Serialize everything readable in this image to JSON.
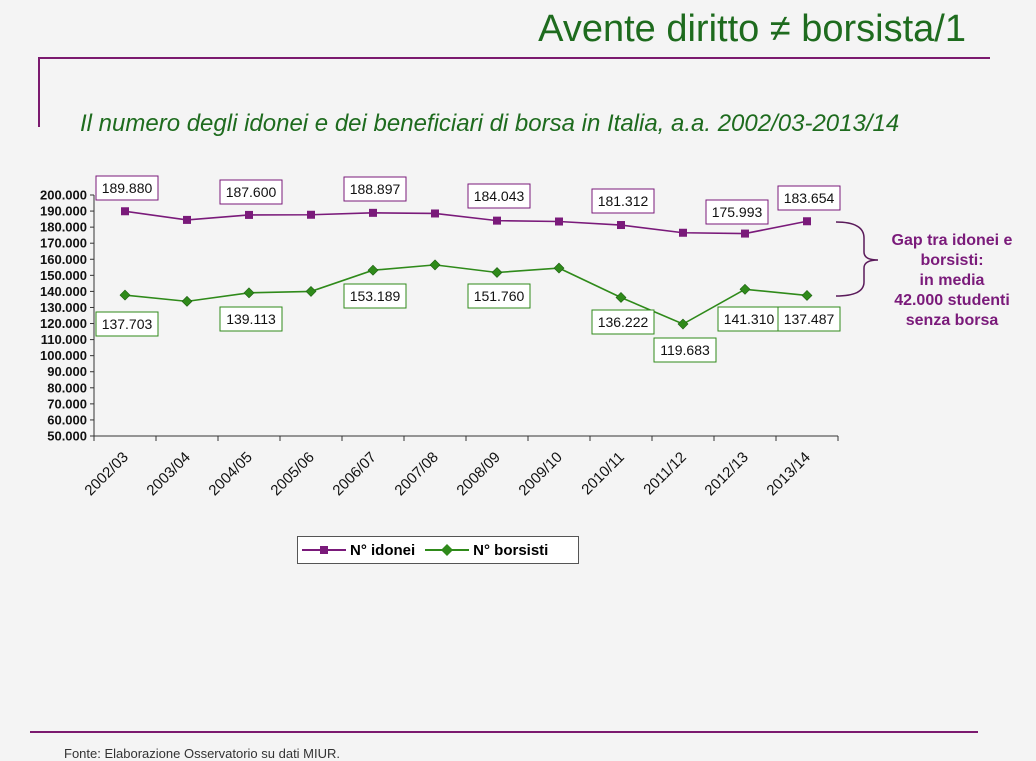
{
  "header": {
    "title": "Avente diritto ≠ borsista/1",
    "subtitle": "Il numero degli idonei e dei beneficiari di borsa in Italia, a.a. 2002/03-2013/14"
  },
  "annotation": {
    "line1": "Gap tra idonei e",
    "line2": "borsisti:",
    "line3": "in media",
    "line4": "42.000 studenti",
    "line5": "senza borsa"
  },
  "footer": {
    "source": "Fonte: Elaborazione Osservatorio su dati MIUR."
  },
  "colors": {
    "idonei": "#7a1a7a",
    "borsisti": "#2f8a1a",
    "frame": "#7b1a6f",
    "title": "#1e6b1e"
  },
  "chart_data": {
    "type": "line",
    "categories": [
      "2002/03",
      "2003/04",
      "2004/05",
      "2005/06",
      "2006/07",
      "2007/08",
      "2008/09",
      "2009/10",
      "2010/11",
      "2011/12",
      "2012/13",
      "2013/14"
    ],
    "ylim": [
      50000,
      200000
    ],
    "yticks": [
      "50.000",
      "60.000",
      "70.000",
      "80.000",
      "90.000",
      "100.000",
      "110.000",
      "120.000",
      "130.000",
      "140.000",
      "150.000",
      "160.000",
      "170.000",
      "180.000",
      "190.000",
      "200.000"
    ],
    "legend_position": "bottom",
    "series": [
      {
        "name": "N° idonei",
        "marker": "square",
        "values": [
          189880,
          184500,
          187600,
          187700,
          188897,
          188500,
          184043,
          183500,
          181312,
          176500,
          175993,
          183654
        ],
        "labels": [
          "189.880",
          "",
          "187.600",
          "",
          "188.897",
          "",
          "184.043",
          "",
          "181.312",
          "",
          "175.993",
          "183.654"
        ]
      },
      {
        "name": "N° borsisti",
        "marker": "diamond",
        "values": [
          137703,
          133800,
          139113,
          140000,
          153189,
          156500,
          151760,
          154500,
          136222,
          119683,
          141310,
          137487
        ],
        "labels": [
          "137.703",
          "",
          "139.113",
          "",
          "153.189",
          "",
          "151.760",
          "",
          "136.222",
          "119.683",
          "141.310",
          "137.487"
        ]
      }
    ]
  }
}
